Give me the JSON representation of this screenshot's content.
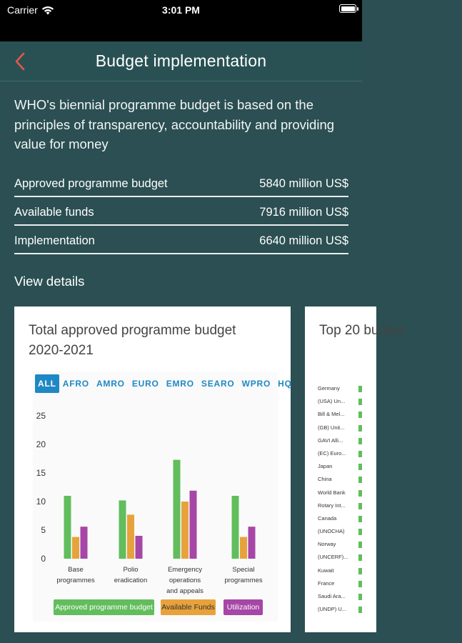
{
  "status_bar": {
    "carrier": "Carrier",
    "time": "3:01 PM"
  },
  "nav": {
    "title": "Budget implementation",
    "back_icon": "chevron-left-icon"
  },
  "intro": "WHO's biennial programme budget is based on the principles of transparency, accountability and providing value for money",
  "summary": [
    {
      "label": "Approved programme budget",
      "value": "5840 million US$"
    },
    {
      "label": "Available funds",
      "value": "7916 million US$"
    },
    {
      "label": "Implementation",
      "value": "6640 million US$"
    }
  ],
  "view_details": "View details",
  "card1": {
    "title": "Total approved programme budget 2020-2021",
    "tabs": [
      "ALL",
      "AFRO",
      "AMRO",
      "EURO",
      "EMRO",
      "SEARO",
      "WPRO",
      "HQ"
    ],
    "legend": [
      "Approved programme budget",
      "Available Funds",
      "Utilization"
    ]
  },
  "card2": {
    "title": "Top 20 budget",
    "items": [
      "Germany",
      "(USA) Un...",
      "Bill & Mel...",
      "(GB) Unit...",
      "GAVI Alli...",
      "(EC) Euro...",
      "Japan",
      "China",
      "World Bank",
      "Rotary Int...",
      "Canada",
      "(UNOCHA)",
      "Norway",
      "(UNCERF)...",
      "Kuwait",
      "France",
      "Saudi Ara...",
      "(UNDP) U..."
    ]
  },
  "colors": {
    "approved": "#62bd5d",
    "available": "#e8a23b",
    "utilization": "#a646a6",
    "accent": "#1e88c4",
    "background": "#2b4f52"
  },
  "chart_data": {
    "type": "bar",
    "categories": [
      "Base programmes",
      "Polio eradication",
      "Emergency operations and appeals",
      "Special programmes"
    ],
    "series": [
      {
        "name": "Approved programme budget",
        "values": [
          11,
          10.2,
          17.3,
          11
        ]
      },
      {
        "name": "Available Funds",
        "values": [
          3.8,
          7.7,
          10,
          3.8
        ]
      },
      {
        "name": "Utilization",
        "values": [
          5.6,
          4,
          11.9,
          5.6
        ]
      }
    ],
    "yticks": [
      0,
      5,
      10,
      15,
      20,
      25
    ],
    "ylim": [
      0,
      25
    ],
    "legend_position": "bottom"
  }
}
